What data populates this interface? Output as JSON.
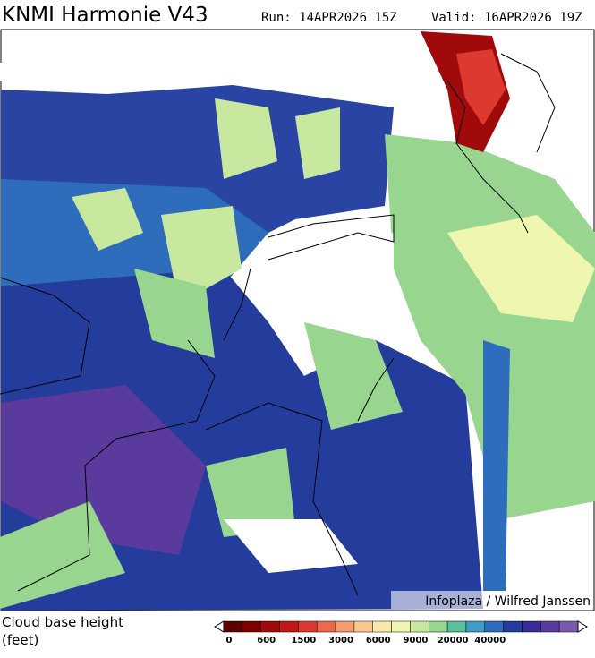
{
  "header": {
    "title": "KNMI Harmonie V43",
    "run": "Run: 14APR2026 15Z",
    "valid": "Valid: 16APR2026 19Z"
  },
  "map": {
    "credit": "Infoplaza / Wilfred Janssen"
  },
  "legend": {
    "title": "Cloud base height",
    "unit": "(feet)",
    "colors": [
      "#5c0000",
      "#800000",
      "#a00a0a",
      "#c41818",
      "#dc3a30",
      "#ec6a4c",
      "#f49c6c",
      "#f8c890",
      "#fbe8a8",
      "#eef6b0",
      "#c8e8a0",
      "#98d690",
      "#5cbf9c",
      "#3c9ec8",
      "#2e6cbc",
      "#243c9c",
      "#3a2c98",
      "#5a3a9c",
      "#7a5ab0"
    ],
    "labels": [
      "0",
      "600",
      "1500",
      "3000",
      "6000",
      "9000",
      "20000",
      "40000"
    ]
  }
}
